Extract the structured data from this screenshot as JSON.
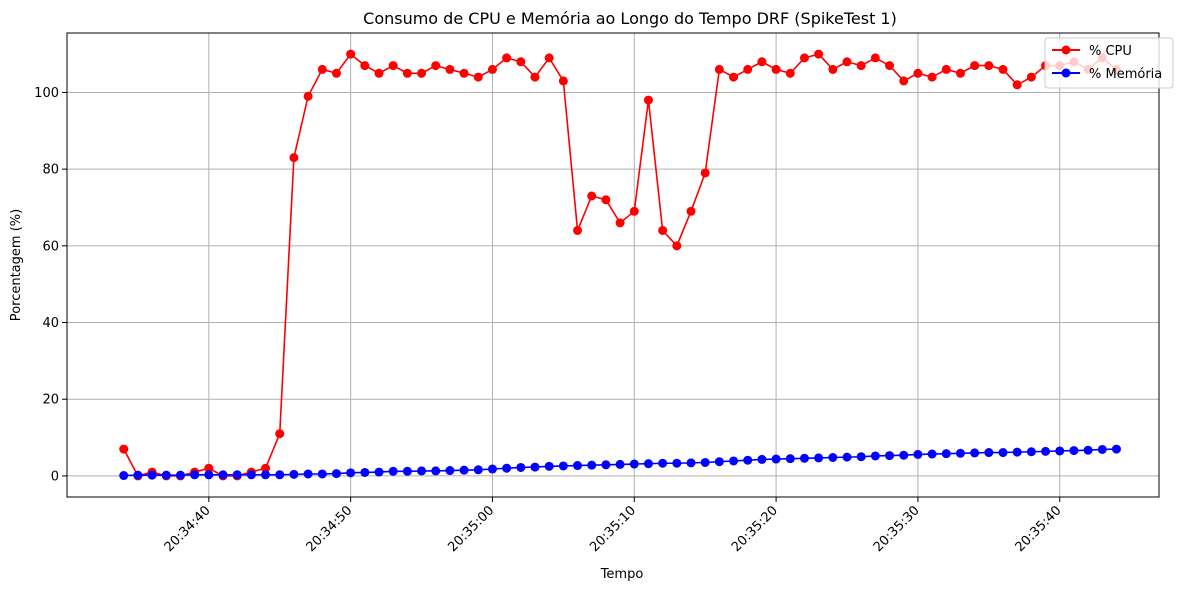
{
  "chart_data": {
    "type": "line",
    "title": "Consumo de CPU e Memória ao Longo do Tempo DRF (SpikeTest 1)",
    "xlabel": "Tempo",
    "ylabel": "Porcentagem (%)",
    "x_start": "20:34:34",
    "x_step_seconds": 1,
    "x_ticks": [
      "20:34:40",
      "20:34:50",
      "20:35:00",
      "20:35:10",
      "20:35:20",
      "20:35:30",
      "20:35:40"
    ],
    "xlim": [
      "20:34:30",
      "20:35:47"
    ],
    "y_ticks": [
      0,
      20,
      40,
      60,
      80,
      100
    ],
    "ylim": [
      -5.5,
      115.5
    ],
    "grid": true,
    "legend": "top-right",
    "series": [
      {
        "name": "% CPU",
        "color": "#ff0000",
        "values": [
          7,
          0,
          1,
          0,
          0,
          1,
          2,
          0,
          0,
          1,
          2,
          11,
          83,
          99,
          106,
          105,
          110,
          107,
          105,
          107,
          105,
          105,
          107,
          106,
          105,
          104,
          106,
          109,
          108,
          104,
          109,
          103,
          64,
          73,
          72,
          66,
          69,
          98,
          64,
          60,
          69,
          79,
          106,
          104,
          106,
          108,
          106,
          105,
          109,
          110,
          106,
          108,
          107,
          109,
          107,
          103,
          105,
          104,
          106,
          105,
          107,
          107,
          106,
          102,
          104,
          107,
          107,
          108,
          106,
          109,
          106
        ]
      },
      {
        "name": "% Memória",
        "color": "#0000ff",
        "values": [
          0.1,
          0.2,
          0.2,
          0.2,
          0.2,
          0.3,
          0.3,
          0.3,
          0.3,
          0.3,
          0.3,
          0.3,
          0.4,
          0.5,
          0.5,
          0.6,
          0.8,
          0.9,
          1.0,
          1.2,
          1.2,
          1.3,
          1.3,
          1.4,
          1.5,
          1.6,
          1.8,
          2.0,
          2.2,
          2.3,
          2.5,
          2.6,
          2.7,
          2.8,
          2.9,
          3.0,
          3.1,
          3.2,
          3.3,
          3.3,
          3.4,
          3.5,
          3.7,
          3.9,
          4.1,
          4.3,
          4.4,
          4.5,
          4.6,
          4.7,
          4.8,
          4.9,
          5.0,
          5.2,
          5.3,
          5.4,
          5.6,
          5.7,
          5.8,
          5.9,
          6.0,
          6.1,
          6.1,
          6.2,
          6.3,
          6.4,
          6.5,
          6.6,
          6.7,
          6.9,
          7.0
        ]
      }
    ]
  }
}
